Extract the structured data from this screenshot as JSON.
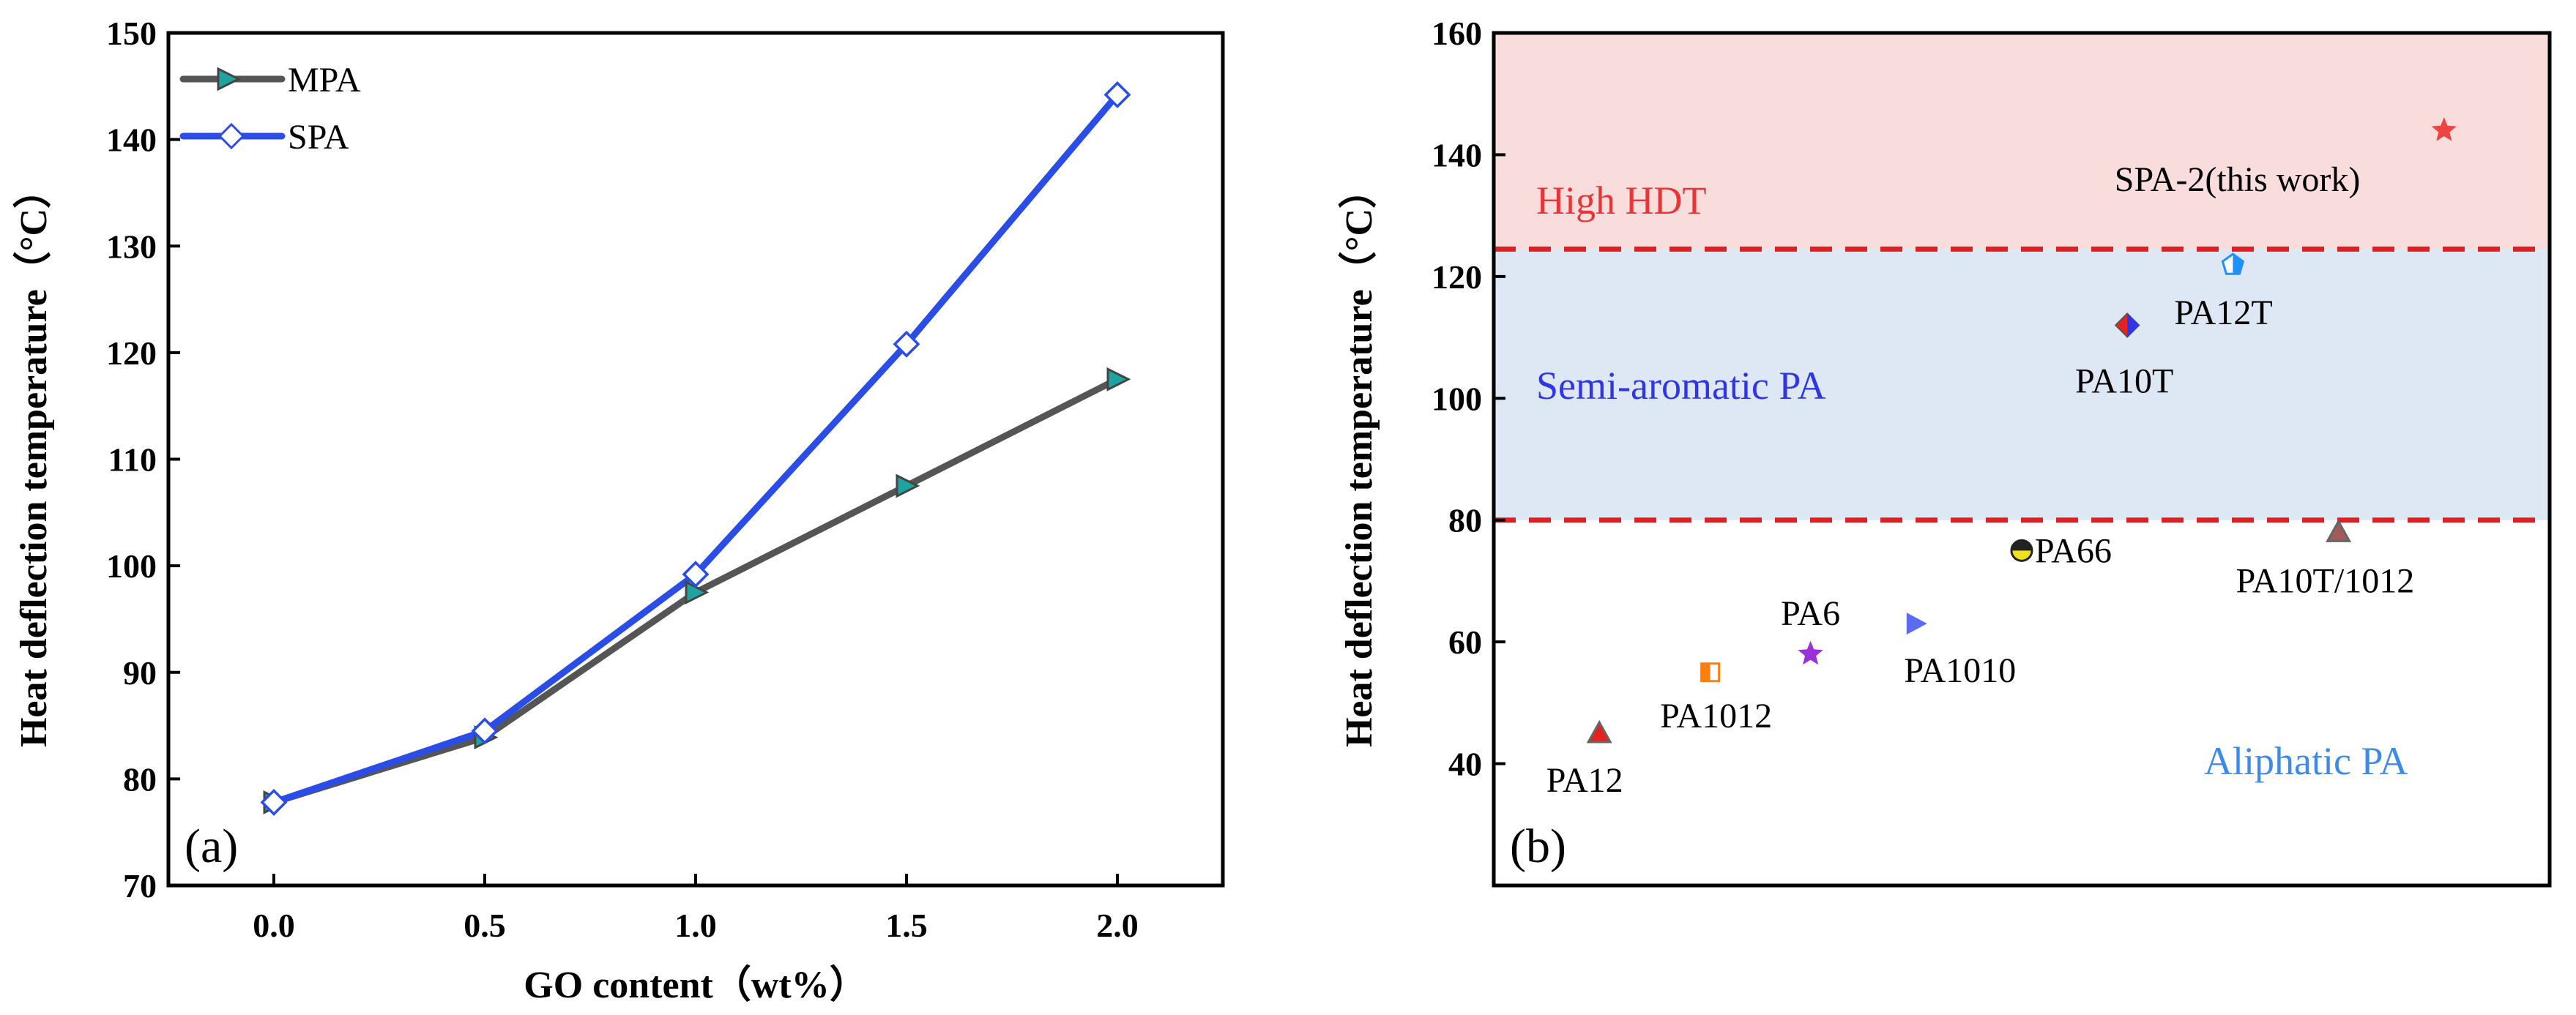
{
  "colors": {
    "mpa_line": "#555555",
    "mpa_marker": "#1fa3a0",
    "spa_line": "#2a4de8",
    "high_band": "#f9dcdc",
    "semi_band": "#dde8f4",
    "divider": "#e02020",
    "high_text": "#e83535",
    "semi_text": "#2f36e6",
    "aliphatic_text": "#3d8be8"
  },
  "chart_data": [
    {
      "type": "line",
      "panel_label": "(a)",
      "xlabel": "GO content（wt%）",
      "ylabel": "Heat deflection temperature（°C）",
      "x": [
        0.0,
        0.5,
        1.0,
        1.5,
        2.0
      ],
      "x_tick_labels": [
        "0.0",
        "0.5",
        "1.0",
        "1.5",
        "2.0"
      ],
      "xlim": [
        -0.25,
        2.25
      ],
      "ylim": [
        70,
        150
      ],
      "y_ticks": [
        70,
        80,
        90,
        100,
        110,
        120,
        130,
        140,
        150
      ],
      "y_tick_labels": [
        "70",
        "80",
        "90",
        "100",
        "110",
        "120",
        "130",
        "140",
        "150"
      ],
      "legend_position": "top-left",
      "series": [
        {
          "name": "MPA",
          "marker": "right-triangle",
          "values": [
            77.8,
            83.9,
            97.5,
            107.5,
            117.5
          ]
        },
        {
          "name": "SPA",
          "marker": "diamond",
          "values": [
            77.8,
            84.5,
            99.2,
            120.8,
            144.2
          ]
        }
      ]
    },
    {
      "type": "scatter",
      "panel_label": "(b)",
      "ylabel": "Heat deflection temperature（°C）",
      "xlim": [
        0,
        10
      ],
      "ylim": [
        20,
        160
      ],
      "y_ticks": [
        40,
        60,
        80,
        100,
        120,
        140,
        160
      ],
      "y_tick_labels": [
        "40",
        "60",
        "80",
        "100",
        "120",
        "140",
        "160"
      ],
      "regions": [
        {
          "label": "High HDT",
          "from": 124.5,
          "to": 160
        },
        {
          "label": "Semi-aromatic PA",
          "from": 80,
          "to": 124.5
        },
        {
          "label": "Aliphatic PA",
          "from": 20,
          "to": 80
        }
      ],
      "thresholds": [
        80,
        124.5
      ],
      "points": [
        {
          "label": "PA12",
          "x": 1.0,
          "y": 45,
          "marker": "triangle",
          "color": "#e82020"
        },
        {
          "label": "PA1012",
          "x": 2.05,
          "y": 55,
          "marker": "square-half",
          "color": "#ff7f0e"
        },
        {
          "label": "PA6",
          "x": 3.0,
          "y": 58,
          "marker": "star",
          "color": "#9b30d9"
        },
        {
          "label": "PA1010",
          "x": 4.0,
          "y": 63,
          "marker": "right-triangle",
          "color": "#5b6cf0"
        },
        {
          "label": "PA66",
          "x": 5.0,
          "y": 75,
          "marker": "circle-half",
          "color": "#f0e020"
        },
        {
          "label": "PA10T",
          "x": 6.0,
          "y": 112,
          "marker": "diamond-half",
          "color": "#2f36e6"
        },
        {
          "label": "PA12T",
          "x": 7.0,
          "y": 122,
          "marker": "pentagon-half",
          "color": "#1e90ff"
        },
        {
          "label": "PA10T/1012",
          "x": 8.0,
          "y": 78,
          "marker": "triangle",
          "color": "#a55a5a"
        },
        {
          "label": "SPA-2(this work)",
          "x": 9.0,
          "y": 144,
          "marker": "star",
          "color": "#ee4444"
        }
      ]
    }
  ]
}
